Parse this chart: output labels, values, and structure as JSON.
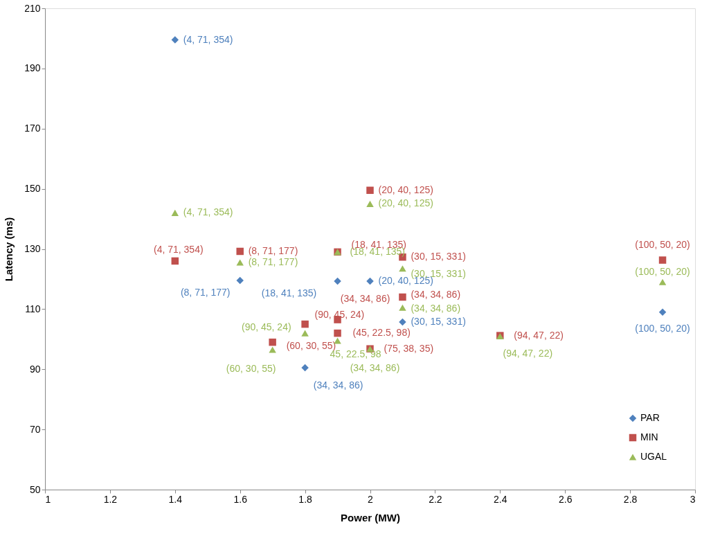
{
  "chart_data": {
    "type": "scatter",
    "xlabel": "Power (MW)",
    "ylabel": "Latency (ms)",
    "xlim": [
      1,
      3
    ],
    "xticks": [
      1,
      1.2,
      1.4,
      1.6,
      1.8,
      2,
      2.2,
      2.4,
      2.6,
      2.8,
      3
    ],
    "ylim": [
      50,
      210
    ],
    "yticks": [
      50,
      70,
      90,
      110,
      130,
      150,
      170,
      190,
      210
    ],
    "grid": false,
    "legend": "bottom right",
    "series": [
      {
        "name": "PAR",
        "color": "#4f81bd",
        "marker": "diamond",
        "x": [
          1.4,
          1.6,
          1.9,
          2.0,
          2.1,
          1.8,
          2.9
        ],
        "values": [
          199.5,
          119.5,
          119.3,
          119.3,
          105.7,
          90.5,
          109
        ],
        "value_labels": [
          "(4, 71, 354)",
          "(8, 71, 177)",
          "(18, 41, 135)",
          "(20, 40, 125)",
          "(30, 15, 331)",
          "(34, 34, 86)",
          "(100, 50, 20)"
        ]
      },
      {
        "name": "MIN",
        "color": "#c0504d",
        "marker": "square",
        "x": [
          1.4,
          1.6,
          1.9,
          2.0,
          2.1,
          2.1,
          1.8,
          1.7,
          1.9,
          1.9,
          2.0,
          2.4,
          2.9
        ],
        "values": [
          126,
          129.2,
          129,
          149.5,
          127.3,
          114,
          105,
          99,
          106.5,
          102,
          96.8,
          101.2,
          126.3
        ],
        "value_labels": [
          "(4, 71, 354)",
          "(8, 71, 177)",
          "(18, 41, 135)",
          "(20, 40, 125)",
          "(30, 15, 331)",
          "(34, 34, 86)",
          "(90, 45, 24)",
          "(60, 30, 55)",
          "(34, 34, 86)",
          "(45, 22.5, 98)",
          "(75, 38, 35)",
          "(94, 47, 22)",
          "(100, 50, 20)"
        ]
      },
      {
        "name": "UGAL",
        "color": "#9bbb59",
        "marker": "triangle",
        "x": [
          1.4,
          1.6,
          1.7,
          1.8,
          1.9,
          1.9,
          2.0,
          2.0,
          2.1,
          2.1,
          2.4,
          2.9
        ],
        "values": [
          142,
          125.5,
          96.5,
          102,
          129,
          99.5,
          145,
          96.8,
          123.5,
          110.5,
          101,
          119
        ],
        "value_labels": [
          "(4, 71, 354)",
          "(8, 71, 177)",
          "(60, 30, 55)",
          "(90, 45, 24)",
          "(18, 41, 135)",
          "45, 22.5, 98",
          "(20, 40, 125)",
          "(34, 34, 86)",
          "(30, 15, 331)",
          "(34, 34, 86)",
          "(94, 47, 22)",
          "(100, 50, 20)"
        ]
      }
    ]
  }
}
